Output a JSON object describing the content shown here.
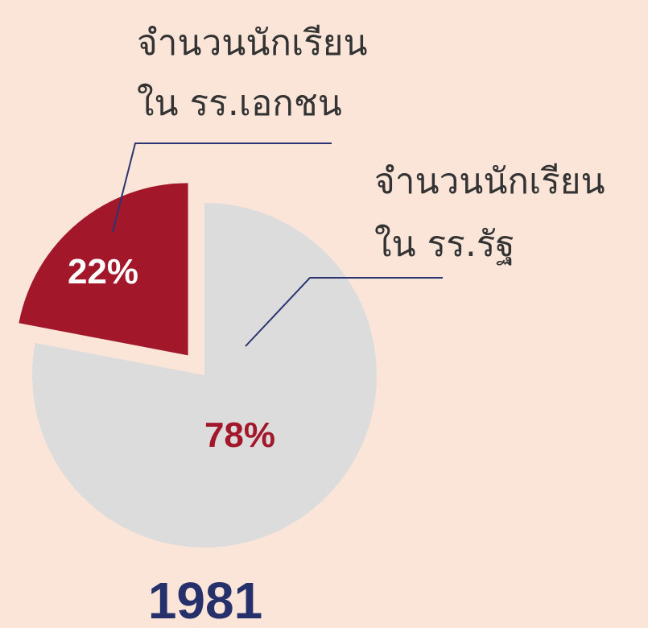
{
  "chart_data": {
    "type": "pie",
    "title": "1981",
    "categories": [
      [
        "จำนวนนักเรียน",
        "ใน รร.เอกชน"
      ],
      [
        "จำนวนนักเรียน",
        "ใน รร.รัฐ"
      ]
    ],
    "values": [
      22,
      78
    ],
    "value_labels": [
      "22%",
      "78%"
    ],
    "colors": [
      "#a3172b",
      "#dcdcdc"
    ]
  }
}
